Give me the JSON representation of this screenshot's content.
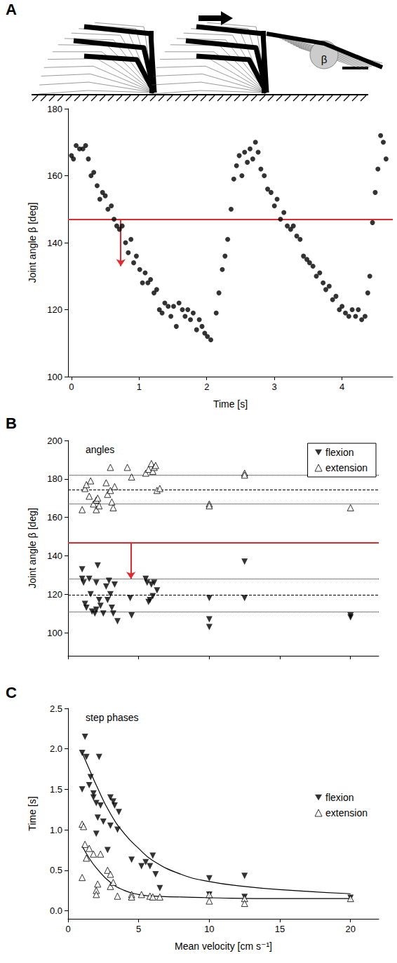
{
  "diagram": {
    "angle_label": "β"
  },
  "chart_data": [
    {
      "panel": "A",
      "type": "scatter",
      "xlabel": "Time [s]",
      "ylabel": "Joint angle β [deg]",
      "xlim": [
        -0.05,
        4.75
      ],
      "xticks": [
        0,
        1,
        2,
        3,
        4
      ],
      "ylim": [
        100,
        180
      ],
      "yticks": [
        100,
        120,
        140,
        160,
        180
      ],
      "grid": false,
      "series": [
        {
          "marker": "circle",
          "color": "#000000",
          "x": [
            0,
            0.03,
            0.07,
            0.12,
            0.17,
            0.21,
            0.25,
            0.29,
            0.33,
            0.38,
            0.42,
            0.46,
            0.5,
            0.54,
            0.59,
            0.63,
            0.67,
            0.71,
            0.75,
            0.8,
            0.84,
            0.88,
            0.92,
            0.96,
            1.01,
            1.05,
            1.09,
            1.13,
            1.17,
            1.22,
            1.26,
            1.3,
            1.34,
            1.38,
            1.43,
            1.47,
            1.51,
            1.55,
            1.59,
            1.64,
            1.68,
            1.72,
            1.76,
            1.8,
            1.85,
            1.89,
            1.93,
            1.97,
            2.01,
            2.06,
            2.14,
            2.18,
            2.23,
            2.27,
            2.31,
            2.36,
            2.4,
            2.44,
            2.48,
            2.52,
            2.56,
            2.6,
            2.64,
            2.68,
            2.72,
            2.76,
            2.8,
            2.85,
            2.9,
            2.95,
            3.0,
            3.04,
            3.09,
            3.14,
            3.19,
            3.24,
            3.28,
            3.33,
            3.38,
            3.43,
            3.48,
            3.52,
            3.57,
            3.62,
            3.67,
            3.72,
            3.76,
            3.81,
            3.86,
            3.91,
            3.96,
            4.0,
            4.05,
            4.1,
            4.15,
            4.2,
            4.24,
            4.29,
            4.34,
            4.38,
            4.41,
            4.45,
            4.49,
            4.53,
            4.57,
            4.61,
            4.65
          ],
          "values": [
            166,
            165,
            169,
            168,
            168,
            169,
            165,
            160,
            161,
            157,
            153,
            155,
            154,
            150,
            151,
            147,
            145,
            144,
            145,
            140,
            137,
            141,
            134,
            136,
            132,
            128,
            131,
            128,
            129,
            125,
            126,
            120,
            119,
            122,
            121,
            118,
            121,
            115,
            122,
            120,
            118,
            120,
            117,
            119,
            114,
            117,
            115,
            113,
            112,
            111,
            119,
            125,
            132,
            136,
            141,
            150,
            159,
            163,
            166,
            160,
            167,
            164,
            168,
            165,
            170,
            167,
            162,
            160,
            156,
            155,
            151,
            153,
            147,
            149,
            145,
            144,
            145,
            142,
            141,
            136,
            135,
            134,
            133,
            130,
            131,
            128,
            126,
            127,
            123,
            124,
            120,
            121,
            119,
            118,
            120,
            118,
            120,
            117,
            118,
            125,
            130,
            146,
            155,
            162,
            172,
            170,
            165
          ]
        }
      ],
      "reference_lines": [
        {
          "y": 147,
          "color": "#e8262b",
          "line_style": "solid"
        }
      ],
      "arrows": [
        {
          "x": 0.73,
          "y_from": 147,
          "y_to": 133,
          "color": "#e8262b"
        }
      ]
    },
    {
      "panel": "B",
      "type": "scatter",
      "title": "angles",
      "ylabel": "Joint angle β [deg]",
      "xlim": [
        0,
        22
      ],
      "xticks": [
        0,
        5,
        10,
        15,
        20
      ],
      "ylim": [
        88,
        200
      ],
      "yticks": [
        100,
        120,
        140,
        160,
        180,
        200
      ],
      "tick_labels": "y",
      "grid": false,
      "legend": "upper right",
      "series": [
        {
          "name": "flexion",
          "marker": "triangle-down-filled",
          "color": "#000000",
          "x": [
            1,
            1.1,
            1.2,
            1.0,
            1.3,
            1.5,
            1.6,
            1.7,
            1.9,
            2,
            2.1,
            2.2,
            2.0,
            2.3,
            2.5,
            2.7,
            2.9,
            3,
            3.1,
            3.2,
            3.3,
            3.5,
            2.8,
            4.5,
            4.4,
            5.5,
            5.6,
            5.7,
            5.9,
            6,
            6.1,
            6.3,
            5.8,
            10,
            10,
            10,
            12.5,
            12.5,
            20,
            20
          ],
          "values": [
            128,
            126,
            115,
            133,
            113,
            128,
            120,
            111,
            110,
            112,
            135,
            117,
            126,
            114,
            110,
            124,
            127,
            120,
            113,
            110,
            125,
            106,
            117,
            109,
            118,
            128,
            126,
            116,
            125,
            119,
            126,
            122,
            117,
            118,
            107,
            103,
            137,
            118,
            109,
            108
          ]
        },
        {
          "name": "extension",
          "marker": "triangle-up-open",
          "color": "#000000",
          "x": [
            1.0,
            1.2,
            1.3,
            1.5,
            1.6,
            1.8,
            2,
            2.0,
            2.1,
            2.2,
            2.7,
            2.8,
            3,
            3,
            3.1,
            3.2,
            3.3,
            4.2,
            4.5,
            5.5,
            5.7,
            5.9,
            6.0,
            6.1,
            6.2,
            6.3,
            6.5,
            10,
            10,
            12.5,
            12.5,
            20
          ],
          "values": [
            164,
            175,
            177,
            171,
            179,
            167,
            169,
            164,
            170,
            166,
            178,
            172,
            186,
            174,
            168,
            165,
            176,
            186,
            181,
            183,
            185,
            188,
            184,
            186,
            187,
            174,
            175,
            167,
            166,
            183,
            182,
            165
          ]
        }
      ],
      "reference_lines": [
        {
          "y": 182,
          "color": "#000000",
          "line_style": "dotted"
        },
        {
          "y": 174.5,
          "color": "#000000",
          "line_style": "dashed"
        },
        {
          "y": 167,
          "color": "#000000",
          "line_style": "dotted"
        },
        {
          "y": 147,
          "color": "#e8262b",
          "line_style": "solid"
        },
        {
          "y": 128,
          "color": "#000000",
          "line_style": "dotted"
        },
        {
          "y": 119.5,
          "color": "#000000",
          "line_style": "dashed"
        },
        {
          "y": 111,
          "color": "#000000",
          "line_style": "dotted"
        }
      ],
      "arrows": [
        {
          "x": 4.45,
          "y_from": 147,
          "y_to": 128,
          "color": "#e8262b"
        }
      ]
    },
    {
      "panel": "C",
      "type": "scatter",
      "title": "step phases",
      "xlabel": "Mean velocity [cm s⁻¹]",
      "ylabel": "Time [s]",
      "xlim": [
        0,
        22
      ],
      "xticks": [
        0,
        5,
        10,
        15,
        20
      ],
      "ylim": [
        -0.1,
        2.5
      ],
      "yticks": [
        {
          "value": 0,
          "label": "0.0"
        },
        {
          "value": 0.5,
          "label": "0.5"
        },
        {
          "value": 1,
          "label": "1.0"
        },
        {
          "value": 1.5,
          "label": "1.5"
        },
        {
          "value": 2,
          "label": "2.0"
        },
        {
          "value": 2.5,
          "label": "2.5"
        }
      ],
      "grid": false,
      "legend": "center right",
      "series": [
        {
          "name": "flexion",
          "marker": "triangle-down-filled",
          "color": "#000000",
          "x": [
            1,
            1.2,
            1.3,
            1,
            1.5,
            1.6,
            1.8,
            2,
            2.1,
            2.2,
            2,
            1.8,
            2.5,
            2.3,
            3,
            3.2,
            3.3,
            3,
            3.5,
            3.6,
            2.8,
            4.5,
            5.2,
            5.5,
            5.8,
            6,
            6.2,
            6.5,
            10,
            10,
            12.5,
            12.5,
            20
          ],
          "values": [
            1.95,
            2.15,
            1.9,
            1.5,
            1.55,
            1.65,
            1.4,
            1.33,
            1.15,
            1.9,
            0.95,
            1.45,
            1.1,
            1.3,
            1.4,
            1.35,
            1.3,
            1.05,
            1.0,
            1.22,
            0.75,
            0.63,
            0.55,
            0.6,
            0.55,
            0.68,
            0.45,
            0.28,
            0.4,
            0.2,
            0.43,
            0.17,
            0.16
          ]
        },
        {
          "name": "extension",
          "marker": "triangle-up-open",
          "color": "#000000",
          "x": [
            1,
            1.1,
            1.2,
            1.3,
            1,
            1.5,
            1.8,
            2,
            2,
            2.1,
            2.3,
            2.8,
            3,
            3,
            3.2,
            3.5,
            4.5,
            4.5,
            5.2,
            5.8,
            6,
            6.5,
            10,
            10,
            12.5,
            12.5,
            20
          ],
          "values": [
            1.07,
            1.04,
            0.82,
            0.65,
            0.41,
            0.77,
            0.7,
            0.25,
            0.2,
            0.33,
            0.7,
            0.5,
            0.45,
            0.3,
            0.35,
            0.18,
            0.2,
            0.17,
            0.2,
            0.18,
            0.17,
            0.17,
            0.2,
            0.12,
            0.15,
            0.09,
            0.15
          ]
        }
      ],
      "fits": [
        {
          "color": "#000000",
          "x": [
            1,
            1.5,
            2,
            3,
            4,
            5,
            6,
            8,
            10,
            12.5,
            15,
            20
          ],
          "values": [
            1.95,
            1.75,
            1.55,
            1.2,
            0.95,
            0.77,
            0.62,
            0.45,
            0.36,
            0.3,
            0.26,
            0.21
          ]
        },
        {
          "color": "#000000",
          "x": [
            1,
            1.5,
            2,
            3,
            4,
            5,
            6,
            8,
            10,
            15,
            20
          ],
          "values": [
            0.8,
            0.65,
            0.53,
            0.35,
            0.25,
            0.2,
            0.18,
            0.17,
            0.16,
            0.15,
            0.15
          ]
        }
      ]
    }
  ]
}
